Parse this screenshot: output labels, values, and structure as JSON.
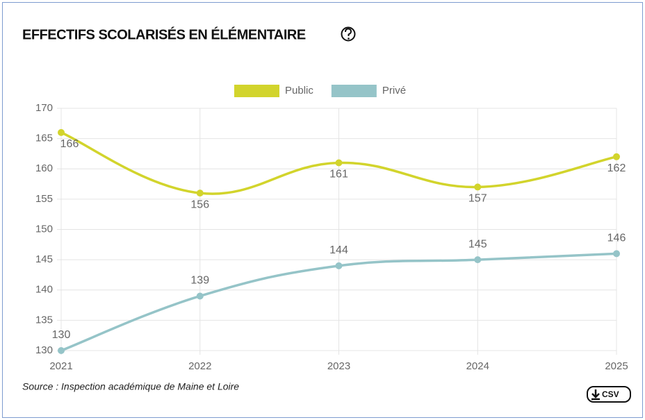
{
  "chart_data": {
    "type": "line",
    "title": "EFFECTIFS SCOLARISÉS EN ÉLÉMENTAIRE",
    "categories": [
      "2021",
      "2022",
      "2023",
      "2024",
      "2025"
    ],
    "series": [
      {
        "name": "Public",
        "color": "#d2d42c",
        "values": [
          166,
          156,
          161,
          157,
          162
        ]
      },
      {
        "name": "Privé",
        "color": "#95c4c8",
        "values": [
          130,
          139,
          144,
          145,
          146
        ]
      }
    ],
    "ylim": [
      130,
      170
    ],
    "yticks": [
      130,
      135,
      140,
      145,
      150,
      155,
      160,
      165,
      170
    ],
    "grid": true,
    "legend": "top",
    "source": "Source : Inspection académique de Maine et Loire",
    "csv_button": "CSV"
  }
}
